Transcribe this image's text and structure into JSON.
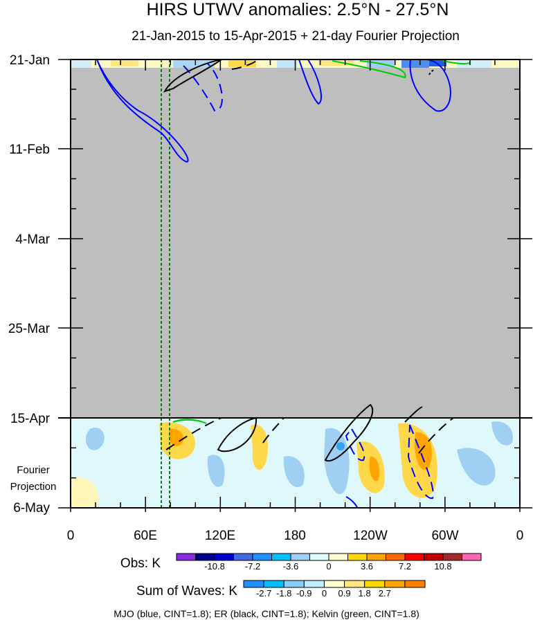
{
  "chart_data": {
    "type": "heatmap",
    "title": "HIRS UTWV anomalies: 2.5°N - 27.5°N",
    "subtitle": "21-Jan-2015 to 15-Apr-2015 + 21-day Fourier Projection",
    "y_tick_labels": [
      "21-Jan",
      "11-Feb",
      "4-Mar",
      "25-Mar",
      "15-Apr",
      "6-May"
    ],
    "y_side_label": [
      "Fourier",
      "Projection"
    ],
    "x_tick_labels": [
      "0",
      "60E",
      "120E",
      "180",
      "120W",
      "60W",
      "0"
    ],
    "x_range_deg_east": [
      0,
      360
    ],
    "time_range": [
      "21-Jan-2015",
      "6-May-2015"
    ],
    "projection_start": "15-Apr-2015",
    "missing_data_period": [
      "22-Jan-2015",
      "15-Apr-2015"
    ],
    "obs_colorbar": {
      "title": "Obs: K",
      "labels": [
        "-10.8",
        "-7.2",
        "-3.6",
        "0",
        "3.6",
        "7.2",
        "10.8"
      ],
      "colors": [
        "#8a2be2",
        "#00008b",
        "#0000cd",
        "#4169e1",
        "#1e90ff",
        "#00bfff",
        "#a0cdf5",
        "#e0ffff",
        "#ffffd0",
        "#ffd700",
        "#ffa500",
        "#ff6a00",
        "#ff0000",
        "#c00000",
        "#a52a2a",
        "#ff69b4"
      ]
    },
    "waves_colorbar": {
      "title": "Sum of Waves: K",
      "labels": [
        "-2.7",
        "-1.8",
        "-0.9",
        "0",
        "0.9",
        "1.8",
        "2.7"
      ],
      "colors": [
        "#1e90ff",
        "#00bfff",
        "#87cefa",
        "#bfefff",
        "#ffffd0",
        "#ffe680",
        "#ffd700",
        "#ffa500",
        "#ff7f00"
      ]
    },
    "contour_legend": "MJO (blue, CINT=1.8); ER (black, CINT=1.8); Kelvin (green, CINT=1.8)",
    "series": [
      {
        "name": "MJO",
        "color": "#0000ff",
        "cint": 1.8
      },
      {
        "name": "ER",
        "color": "#000000",
        "cint": 1.8
      },
      {
        "name": "Kelvin",
        "color": "#00cc00",
        "cint": 1.8
      }
    ],
    "reference_lines_deg_east": [
      75,
      80
    ],
    "reference_line_color": "#008000",
    "grid": false
  }
}
